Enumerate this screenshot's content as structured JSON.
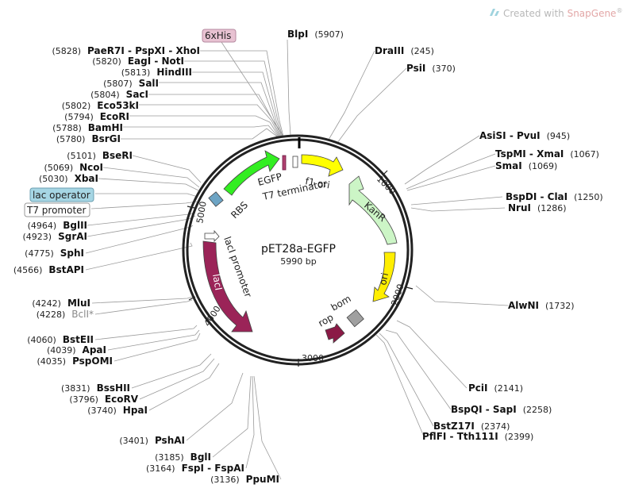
{
  "watermark": {
    "prefix": "Created with ",
    "brand": "SnapGene",
    "suffix": "®"
  },
  "plasmid": {
    "name": "pET28a-EGFP",
    "size": "5990 bp"
  },
  "ticks": {
    "t1000": "1000",
    "t2000": "2000",
    "t3000": "3000",
    "t4000": "4000",
    "t5000": "5000"
  },
  "features": {
    "rbs": "RBS",
    "egfp": "EGFP",
    "t7term": "T7 terminator",
    "f1ori": "f1 ori",
    "kanr": "KanR",
    "ori": "ori",
    "bom": "bom",
    "rop": "rop",
    "laci": "lacI",
    "lacipromoter": "lacI promoter"
  },
  "boxed_labels": {
    "his": "6xHis",
    "lacop": "lac operator",
    "t7prom": "T7 promoter"
  },
  "colors": {
    "egfp": "#33ee22",
    "f1ori": "#ffff00",
    "kanr": "#ccf5c6",
    "ori": "#ffee00",
    "laci": "#9b2458",
    "rop": "#8b1a46",
    "bom": "#a0a0a0",
    "his_box": "#e8c2d2",
    "lacop_box": "#a6d6e4"
  },
  "sites": [
    {
      "id": "paer7i",
      "name": "PaeR7I - PspXI - XhoI",
      "pos": "(5828)"
    },
    {
      "id": "eagi",
      "name": "EagI - NotI",
      "pos": "(5820)"
    },
    {
      "id": "hindiii",
      "name": "HindIII",
      "pos": "(5813)"
    },
    {
      "id": "sali",
      "name": "SalI",
      "pos": "(5807)"
    },
    {
      "id": "saci",
      "name": "SacI",
      "pos": "(5804)"
    },
    {
      "id": "eco53ki",
      "name": "Eco53kI",
      "pos": "(5802)"
    },
    {
      "id": "ecori",
      "name": "EcoRI",
      "pos": "(5794)"
    },
    {
      "id": "bamhi",
      "name": "BamHI",
      "pos": "(5788)"
    },
    {
      "id": "bsrgi",
      "name": "BsrGI",
      "pos": "(5780)"
    },
    {
      "id": "bseri",
      "name": "BseRI",
      "pos": "(5101)"
    },
    {
      "id": "ncoi",
      "name": "NcoI",
      "pos": "(5069)"
    },
    {
      "id": "xbai",
      "name": "XbaI",
      "pos": "(5030)"
    },
    {
      "id": "bglii",
      "name": "BglII",
      "pos": "(4964)"
    },
    {
      "id": "sgrai",
      "name": "SgrAI",
      "pos": "(4923)"
    },
    {
      "id": "sphi",
      "name": "SphI",
      "pos": "(4775)"
    },
    {
      "id": "bstapi",
      "name": "BstAPI",
      "pos": "(4566)"
    },
    {
      "id": "mlui",
      "name": "MluI",
      "pos": "(4242)"
    },
    {
      "id": "bcli",
      "name": "BclI*",
      "pos": "(4228)"
    },
    {
      "id": "bsteii",
      "name": "BstEII",
      "pos": "(4060)"
    },
    {
      "id": "apai",
      "name": "ApaI",
      "pos": "(4039)"
    },
    {
      "id": "pspomi",
      "name": "PspOMI",
      "pos": "(4035)"
    },
    {
      "id": "bsshii",
      "name": "BssHII",
      "pos": "(3831)"
    },
    {
      "id": "ecorv",
      "name": "EcoRV",
      "pos": "(3796)"
    },
    {
      "id": "hpai",
      "name": "HpaI",
      "pos": "(3740)"
    },
    {
      "id": "pshai",
      "name": "PshAI",
      "pos": "(3401)"
    },
    {
      "id": "bgli",
      "name": "BglI",
      "pos": "(3185)"
    },
    {
      "id": "fspi",
      "name": "FspI - FspAI",
      "pos": "(3164)"
    },
    {
      "id": "ppumi",
      "name": "PpuMI",
      "pos": "(3136)"
    },
    {
      "id": "blpi",
      "name": "BlpI",
      "pos": "(5907)"
    },
    {
      "id": "draiii",
      "name": "DraIII",
      "pos": "(245)"
    },
    {
      "id": "psii",
      "name": "PsiI",
      "pos": "(370)"
    },
    {
      "id": "asisi",
      "name": "AsiSI - PvuI",
      "pos": "(945)"
    },
    {
      "id": "tspmi",
      "name": "TspMI - XmaI",
      "pos": "(1067)"
    },
    {
      "id": "smai",
      "name": "SmaI",
      "pos": "(1069)"
    },
    {
      "id": "bspdi",
      "name": "BspDI - ClaI",
      "pos": "(1250)"
    },
    {
      "id": "grui",
      "name": "NruI",
      "pos": "(1286)"
    },
    {
      "id": "alwni",
      "name": "AlwNI",
      "pos": "(1732)"
    },
    {
      "id": "pcii",
      "name": "PciI",
      "pos": "(2141)"
    },
    {
      "id": "bspqi",
      "name": "BspQI - SapI",
      "pos": "(2258)"
    },
    {
      "id": "bstz17i",
      "name": "BstZ17I",
      "pos": "(2374)"
    },
    {
      "id": "pflfi",
      "name": "PflFI - Tth111I",
      "pos": "(2399)"
    }
  ]
}
